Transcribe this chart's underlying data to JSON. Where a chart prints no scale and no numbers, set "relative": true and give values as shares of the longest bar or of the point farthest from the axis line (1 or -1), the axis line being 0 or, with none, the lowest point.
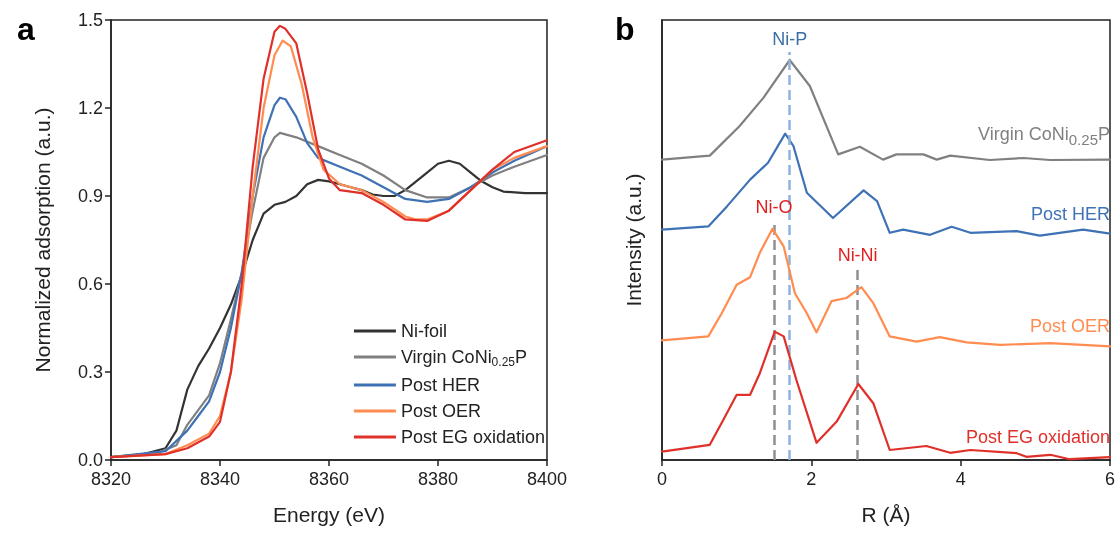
{
  "chart_data": [
    {
      "type": "line",
      "title": "a",
      "xlabel": "Energy (eV)",
      "ylabel": "Normalized adsorption (a.u.)",
      "legend": "bottom right",
      "grid": false,
      "marker": "none",
      "line_style": "solid",
      "xlim": [
        8320,
        8400
      ],
      "xticks": [
        8320,
        8340,
        8360,
        8380,
        8400
      ],
      "ylim": [
        0,
        1.5
      ],
      "yticks": [
        {
          "value": 0,
          "label": "0.0"
        },
        0.3,
        0.6,
        0.9,
        1.2,
        1.5
      ],
      "series": [
        {
          "name": "Ni-foil",
          "color": "#333333",
          "x": [
            8320,
            8326,
            8330,
            8332,
            8334,
            8336,
            8338,
            8340,
            8342,
            8344,
            8346,
            8348,
            8350,
            8352,
            8354,
            8356,
            8358,
            8360,
            8362,
            8364,
            8366,
            8368,
            8370,
            8372,
            8374,
            8376,
            8378,
            8380,
            8382,
            8384,
            8386,
            8388,
            8390,
            8392,
            8396,
            8400
          ],
          "values": [
            0.01,
            0.02,
            0.04,
            0.1,
            0.24,
            0.32,
            0.38,
            0.45,
            0.53,
            0.63,
            0.75,
            0.84,
            0.87,
            0.88,
            0.9,
            0.94,
            0.955,
            0.95,
            0.94,
            0.93,
            0.92,
            0.905,
            0.9,
            0.9,
            0.92,
            0.95,
            0.98,
            1.01,
            1.02,
            1.01,
            0.98,
            0.95,
            0.93,
            0.915,
            0.91,
            0.91
          ]
        },
        {
          "name": "Virgin CoNi$_{0.25}$P",
          "color": "#808080",
          "x": [
            8320,
            8328,
            8332,
            8334,
            8336,
            8338,
            8340,
            8342,
            8344,
            8346,
            8348,
            8350,
            8351,
            8354,
            8358,
            8362,
            8366,
            8370,
            8374,
            8378,
            8382,
            8386,
            8390,
            8394,
            8400
          ],
          "values": [
            0.01,
            0.02,
            0.05,
            0.12,
            0.17,
            0.22,
            0.33,
            0.48,
            0.64,
            0.85,
            1.03,
            1.1,
            1.115,
            1.1,
            1.07,
            1.04,
            1.01,
            0.97,
            0.92,
            0.895,
            0.895,
            0.93,
            0.97,
            1.0,
            1.04
          ]
        },
        {
          "name": "Post HER",
          "color": "#3f72b5",
          "x": [
            8320,
            8330,
            8334,
            8336,
            8338,
            8340,
            8342,
            8344,
            8346,
            8348,
            8350,
            8351,
            8352,
            8354,
            8356,
            8358,
            8362,
            8366,
            8370,
            8374,
            8378,
            8382,
            8386,
            8390,
            8394,
            8400
          ],
          "values": [
            0.01,
            0.03,
            0.1,
            0.15,
            0.2,
            0.3,
            0.45,
            0.64,
            0.9,
            1.1,
            1.21,
            1.235,
            1.23,
            1.17,
            1.08,
            1.03,
            1.0,
            0.97,
            0.93,
            0.89,
            0.88,
            0.89,
            0.93,
            0.98,
            1.02,
            1.07
          ]
        },
        {
          "name": "Post OER",
          "color": "#ff8c50",
          "x": [
            8320,
            8330,
            8334,
            8338,
            8340,
            8342,
            8344,
            8346,
            8348,
            8350,
            8351.5,
            8353,
            8355,
            8357,
            8359,
            8362,
            8366,
            8370,
            8374,
            8376,
            8378,
            8382,
            8386,
            8390,
            8394,
            8400
          ],
          "values": [
            0.01,
            0.02,
            0.05,
            0.09,
            0.15,
            0.3,
            0.55,
            0.9,
            1.2,
            1.38,
            1.43,
            1.41,
            1.28,
            1.1,
            0.99,
            0.94,
            0.92,
            0.88,
            0.83,
            0.82,
            0.82,
            0.85,
            0.92,
            0.99,
            1.03,
            1.07
          ]
        },
        {
          "name": "Post EG oxidation",
          "color": "#e0302a",
          "x": [
            8320,
            8330,
            8334,
            8338,
            8340,
            8342,
            8344,
            8346,
            8348,
            8350,
            8351,
            8352,
            8354,
            8356,
            8358,
            8360,
            8362,
            8366,
            8370,
            8374,
            8378,
            8382,
            8386,
            8390,
            8394,
            8400
          ],
          "values": [
            0.01,
            0.02,
            0.04,
            0.08,
            0.13,
            0.3,
            0.6,
            1.0,
            1.3,
            1.46,
            1.48,
            1.47,
            1.42,
            1.25,
            1.06,
            0.96,
            0.92,
            0.91,
            0.87,
            0.82,
            0.815,
            0.85,
            0.92,
            0.99,
            1.05,
            1.09
          ]
        }
      ]
    },
    {
      "type": "line",
      "title": "b",
      "xlabel": "R (Å)",
      "ylabel": "Intensity (a.u.)",
      "legend": false,
      "grid": false,
      "marker": "none",
      "line_style": "solid",
      "relative": true,
      "tick_labels": "x",
      "xlim": [
        0,
        6
      ],
      "xticks": [
        0,
        2,
        4,
        6
      ],
      "ref_lines": [
        {
          "axis": "x",
          "value": 1.71,
          "color": "#8fb3df",
          "line_style": "dashed"
        },
        {
          "axis": "x",
          "value": 1.5,
          "color": "#909090",
          "line_style": "dashed"
        },
        {
          "axis": "x",
          "value": 2.62,
          "color": "#909090",
          "line_style": "dashed"
        }
      ],
      "annotations": [
        {
          "text": "Ni-P",
          "x": 1.71,
          "y": 1.02
        },
        {
          "text": "Ni-O",
          "x": 1.5,
          "y": 0.6
        },
        {
          "text": "Ni-Ni",
          "x": 2.62,
          "y": 0.48
        }
      ],
      "series": [
        {
          "name": "Virgin CoNi$_{0.25}$P",
          "color": "#808080",
          "x": [
            0,
            0.64,
            1.04,
            1.36,
            1.71,
            1.98,
            2.36,
            2.65,
            2.96,
            3.14,
            3.5,
            3.68,
            3.86,
            4.39,
            4.84,
            5.2,
            6.0
          ],
          "values": [
            0.751,
            0.761,
            0.835,
            0.906,
            1.0,
            0.935,
            0.764,
            0.783,
            0.751,
            0.764,
            0.764,
            0.751,
            0.761,
            0.75,
            0.755,
            0.75,
            0.751
          ]
        },
        {
          "name": "Post HER",
          "color": "#3f72b5",
          "x": [
            0,
            0.62,
            0.87,
            1.18,
            1.42,
            1.65,
            1.76,
            1.94,
            2.29,
            2.7,
            2.88,
            3.05,
            3.23,
            3.59,
            3.88,
            4.13,
            4.75,
            5.06,
            5.64,
            6.0
          ],
          "values": [
            0.576,
            0.584,
            0.634,
            0.701,
            0.743,
            0.816,
            0.785,
            0.668,
            0.605,
            0.674,
            0.647,
            0.568,
            0.576,
            0.563,
            0.583,
            0.568,
            0.572,
            0.561,
            0.576,
            0.566
          ]
        },
        {
          "name": "Post OER",
          "color": "#ff8c50",
          "x": [
            0,
            0.62,
            0.8,
            1.0,
            1.18,
            1.31,
            1.48,
            1.63,
            1.78,
            1.94,
            2.07,
            2.27,
            2.47,
            2.67,
            2.83,
            3.05,
            3.41,
            3.72,
            4.08,
            4.53,
            5.2,
            6.0
          ],
          "values": [
            0.299,
            0.309,
            0.367,
            0.438,
            0.457,
            0.518,
            0.578,
            0.534,
            0.417,
            0.367,
            0.319,
            0.397,
            0.405,
            0.432,
            0.392,
            0.309,
            0.296,
            0.307,
            0.294,
            0.288,
            0.292,
            0.284
          ]
        },
        {
          "name": "Post EG oxidation",
          "color": "#e0302a",
          "x": [
            0,
            0.64,
            0.82,
            1.0,
            1.18,
            1.31,
            1.51,
            1.63,
            1.8,
            2.07,
            2.34,
            2.63,
            2.83,
            3.05,
            3.54,
            3.86,
            4.13,
            4.75,
            4.88,
            5.2,
            5.46,
            6.0
          ],
          "values": [
            0.021,
            0.038,
            0.1,
            0.163,
            0.163,
            0.217,
            0.321,
            0.309,
            0.2,
            0.043,
            0.096,
            0.19,
            0.142,
            0.025,
            0.035,
            0.018,
            0.025,
            0.017,
            0.008,
            0.013,
            0.002,
            0.007
          ]
        }
      ]
    }
  ]
}
